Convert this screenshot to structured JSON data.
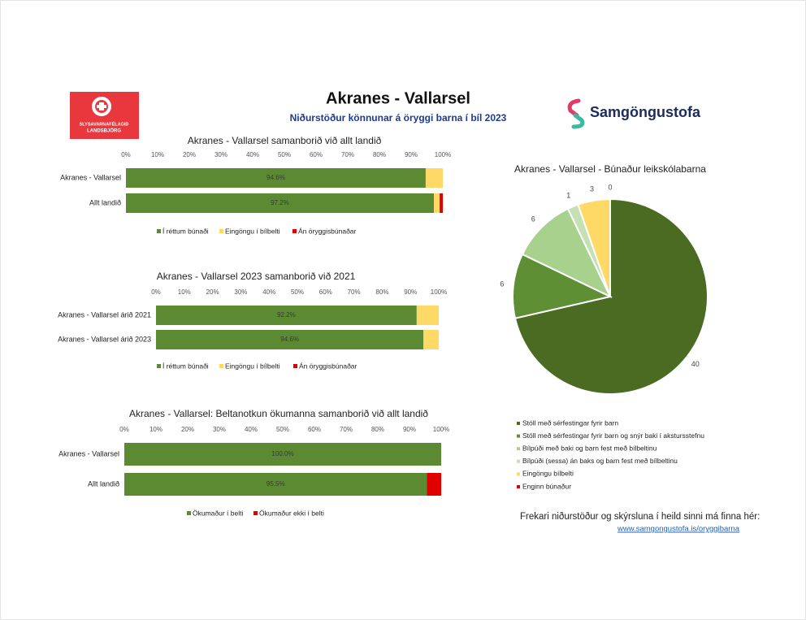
{
  "header": {
    "title": "Akranes - Vallarsel",
    "subtitle": "Niðurstöður könnunar á öryggi barna í bíl 2023",
    "logo_left_line1": "SLYSAVARNAFÉLAGIÐ",
    "logo_left_line2": "LANDSBJÖRG",
    "logo_right": "Samgöngustofa"
  },
  "footer": {
    "text": "Frekari niðurstöður og skýrsluna í heild sinni má finna hér:",
    "link": "www.samgongustofa.is/oryggibarna"
  },
  "chart_data": [
    {
      "type": "bar",
      "orientation": "horizontal",
      "stacked": true,
      "title": "Akranes - Vallarsel samanborið við allt landið",
      "categories": [
        "Akranes - Vallarsel",
        "Allt landið"
      ],
      "series": [
        {
          "name": "Í réttum búnaði",
          "color": "#5b8a32",
          "values": [
            94.6,
            97.2
          ],
          "value_labels": [
            "94.6%",
            "97.2%"
          ]
        },
        {
          "name": "Eingöngu í bílbelti",
          "color": "#ffd966",
          "values": [
            5.4,
            1.8
          ]
        },
        {
          "name": "Án öryggisbúnaðar",
          "color": "#e00000",
          "values": [
            0,
            1.0
          ]
        }
      ],
      "xlim": [
        0,
        100
      ],
      "xticks": [
        {
          "value": 0,
          "label": "0%"
        },
        {
          "value": 10,
          "label": "10%"
        },
        {
          "value": 20,
          "label": "20%"
        },
        {
          "value": 30,
          "label": "30%"
        },
        {
          "value": 40,
          "label": "40%"
        },
        {
          "value": 50,
          "label": "50%"
        },
        {
          "value": 60,
          "label": "60%"
        },
        {
          "value": 70,
          "label": "70%"
        },
        {
          "value": 80,
          "label": "80%"
        },
        {
          "value": 90,
          "label": "90%"
        },
        {
          "value": 100,
          "label": "100%"
        }
      ]
    },
    {
      "type": "bar",
      "orientation": "horizontal",
      "stacked": true,
      "title": "Akranes - Vallarsel 2023 samanborið við 2021",
      "categories": [
        "Akranes - Vallarsel árið 2021",
        "Akranes - Vallarsel árið 2023"
      ],
      "series": [
        {
          "name": "Í réttum búnaði",
          "color": "#5b8a32",
          "values": [
            92.2,
            94.6
          ],
          "value_labels": [
            "92.2%",
            "94.6%"
          ]
        },
        {
          "name": "Eingöngu í bílbelti",
          "color": "#ffd966",
          "values": [
            7.8,
            5.4
          ]
        },
        {
          "name": "Án öryggisbúnaðar",
          "color": "#e00000",
          "values": [
            0,
            0
          ]
        }
      ],
      "xlim": [
        0,
        100
      ],
      "xticks": [
        {
          "value": 0,
          "label": "0%"
        },
        {
          "value": 10,
          "label": "10%"
        },
        {
          "value": 20,
          "label": "20%"
        },
        {
          "value": 30,
          "label": "30%"
        },
        {
          "value": 40,
          "label": "40%"
        },
        {
          "value": 50,
          "label": "50%"
        },
        {
          "value": 60,
          "label": "60%"
        },
        {
          "value": 70,
          "label": "70%"
        },
        {
          "value": 80,
          "label": "80%"
        },
        {
          "value": 90,
          "label": "90%"
        },
        {
          "value": 100,
          "label": "100%"
        }
      ]
    },
    {
      "type": "bar",
      "orientation": "horizontal",
      "stacked": true,
      "title": "Akranes - Vallarsel: Beltanotkun ökumanna samanborið við allt landið",
      "categories": [
        "Akranes - Vallarsel",
        "Allt landið"
      ],
      "series": [
        {
          "name": "Ökumaður í belti",
          "color": "#5b8a32",
          "values": [
            100.0,
            95.5
          ],
          "value_labels": [
            "100.0%",
            "95.5%"
          ]
        },
        {
          "name": "Ökumaður ekki í belti",
          "color": "#e00000",
          "values": [
            0,
            4.5
          ]
        }
      ],
      "xlim": [
        0,
        100
      ],
      "xticks": [
        {
          "value": 0,
          "label": "0%"
        },
        {
          "value": 10,
          "label": "10%"
        },
        {
          "value": 20,
          "label": "20%"
        },
        {
          "value": 30,
          "label": "30%"
        },
        {
          "value": 40,
          "label": "40%"
        },
        {
          "value": 50,
          "label": "50%"
        },
        {
          "value": 60,
          "label": "60%"
        },
        {
          "value": 70,
          "label": "70%"
        },
        {
          "value": 80,
          "label": "80%"
        },
        {
          "value": 90,
          "label": "90%"
        },
        {
          "value": 100,
          "label": "100%"
        }
      ]
    },
    {
      "type": "pie",
      "title": "Akranes - Vallarsel - Búnaður leikskólabarna",
      "categories": [
        "Stóll með sérfestingar fyrir barn",
        "Stóll með sérfestingar fyrir barn og snýr baki í akstursstefnu",
        "Bílpúði með baki og barn fest með bílbeltinu",
        "Bílpúði (sessa) án baks og barn fest með bílbeltinu",
        "Eingöngu bílbelti",
        "Enginn búnaður"
      ],
      "values": [
        40,
        6,
        6,
        1,
        3,
        0
      ],
      "colors": [
        "#4b6b23",
        "#5f8f35",
        "#a9d18e",
        "#c5e0b4",
        "#ffd966",
        "#e00000"
      ]
    }
  ]
}
